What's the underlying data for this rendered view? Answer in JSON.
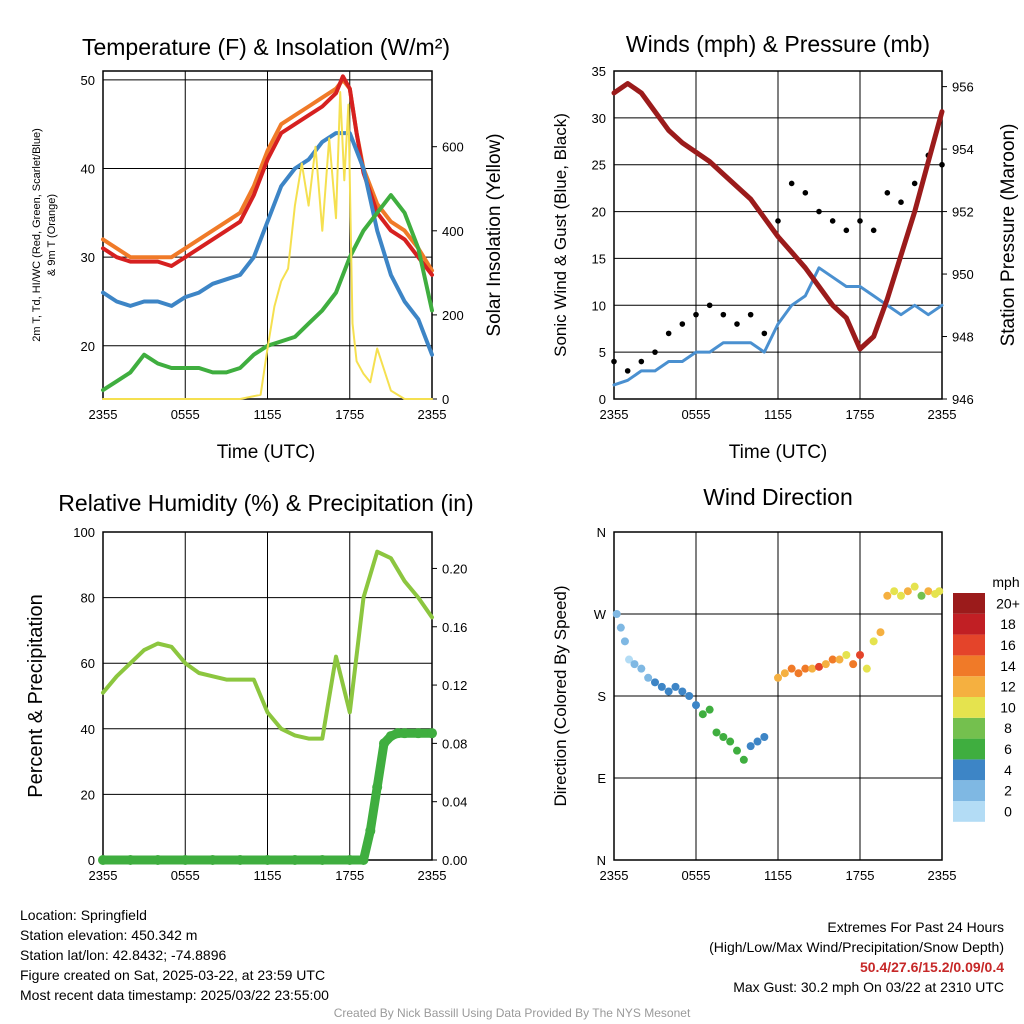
{
  "panels": {
    "temp": {
      "title": "Temperature (F) & Insolation (W/m²)",
      "ylabel_left": [
        "2m T, Td, HI/WC (Red, Green, Scarlet/Blue)",
        "& 9m T (Orange)"
      ],
      "ylabel_right": "Solar Insolation (Yellow)",
      "xlabel": "Time (UTC)"
    },
    "winds": {
      "title": "Winds (mph) & Pressure (mb)",
      "ylabel_left": "Sonic Wind & Gust (Blue, Black)",
      "ylabel_right": "Station Pressure (Maroon)",
      "xlabel": "Time (UTC)"
    },
    "rh": {
      "title": "Relative Humidity (%) & Precipitation (in)",
      "ylabel_left": "Percent & Precipitation"
    },
    "dir": {
      "title": "Wind Direction",
      "ylabel_left": "Direction (Colored By Speed)",
      "colorbar_unit": "mph"
    }
  },
  "station": {
    "location": "Location: Springfield",
    "elevation": "Station elevation: 450.342 m",
    "latlon": "Station lat/lon: 42.8432; -74.8896",
    "created": "Figure created on Sat, 2025-03-22, at 23:59 UTC",
    "recent": "Most recent data timestamp: 2025/03/22 23:55:00"
  },
  "extremes": {
    "heading": "Extremes For Past 24 Hours",
    "legend": "(High/Low/Max Wind/Precipitation/Snow Depth)",
    "values": "50.4/27.6/15.2/0.09/0.4",
    "gust": "Max Gust: 30.2 mph On 03/22 at 2310 UTC"
  },
  "credit": "Created By Nick Bassill Using Data Provided By The NYS Mesonet",
  "colors": {
    "temp": "#d62020",
    "temp9m": "#f07a28",
    "dewpoint": "#3fae3f",
    "windchill": "#3d85c6",
    "solar": "#f5e050",
    "wind": "#4a90d0",
    "gust": "#000000",
    "pressure": "#9b1b1b",
    "rh": "#8cc63f",
    "precip": "#3fae3f"
  },
  "chart_data": [
    {
      "type": "line",
      "id": "temp",
      "title": "Temperature (F) & Insolation (W/m²)",
      "xlabel": "Time (UTC)",
      "x_ticks": [
        "2355",
        "0555",
        "1155",
        "1755",
        "2355"
      ],
      "xlim": [
        0,
        24
      ],
      "ylim_left": [
        14,
        51
      ],
      "yticks_left": [
        20,
        30,
        40,
        50
      ],
      "ylim_right": [
        0,
        780
      ],
      "yticks_right": [
        0,
        200,
        400,
        600
      ],
      "series": [
        {
          "name": "2m T",
          "key": "temp9m",
          "axis": "left",
          "x": [
            0,
            1,
            2,
            3,
            4,
            5,
            6,
            7,
            8,
            9,
            10,
            11,
            12,
            13,
            14,
            15,
            16,
            17,
            17.5,
            18,
            18.5,
            19,
            20,
            21,
            22,
            23,
            24
          ],
          "values": [
            32,
            31,
            30,
            30,
            30,
            30,
            31,
            32,
            33,
            34,
            35,
            38,
            42,
            45,
            46,
            47,
            48,
            49,
            50,
            49,
            44,
            40,
            36,
            34,
            33,
            31,
            28.5
          ]
        },
        {
          "name": "2m T",
          "key": "temp",
          "axis": "left",
          "x": [
            0,
            1,
            2,
            3,
            4,
            5,
            6,
            7,
            8,
            9,
            10,
            11,
            12,
            13,
            14,
            15,
            16,
            17,
            17.5,
            18,
            18.5,
            19,
            20,
            21,
            22,
            23,
            24
          ],
          "values": [
            31,
            30,
            29.5,
            29.5,
            29.5,
            29,
            30,
            31,
            32,
            33,
            34,
            37,
            41,
            44,
            45,
            46,
            47,
            48.5,
            50.4,
            49,
            44,
            39.5,
            35,
            33,
            32,
            30,
            28
          ]
        },
        {
          "name": "HI/WC",
          "key": "windchill",
          "axis": "left",
          "x": [
            0,
            1,
            2,
            3,
            4,
            5,
            6,
            7,
            8,
            9,
            10,
            11,
            12,
            13,
            14,
            15,
            16,
            17,
            18,
            19,
            20,
            21,
            22,
            23,
            24
          ],
          "values": [
            26,
            25,
            24.5,
            25,
            25,
            24.5,
            25.5,
            26,
            27,
            27.5,
            28,
            30,
            34,
            38,
            40,
            41,
            43,
            44,
            44,
            40,
            33,
            28,
            25,
            23,
            19
          ]
        },
        {
          "name": "Td",
          "key": "dewpoint",
          "axis": "left",
          "x": [
            0,
            1,
            2,
            3,
            4,
            5,
            6,
            7,
            8,
            9,
            10,
            11,
            12,
            13,
            14,
            15,
            16,
            17,
            18,
            19,
            20,
            21,
            22,
            23,
            24
          ],
          "values": [
            15,
            16,
            17,
            19,
            18,
            17.5,
            17.5,
            17.5,
            17,
            17,
            17.5,
            19,
            20,
            20.5,
            21,
            22.5,
            24,
            26,
            30,
            33,
            35,
            37,
            35,
            31,
            24
          ]
        },
        {
          "name": "Solar Insolation",
          "key": "solar",
          "axis": "right",
          "x": [
            0,
            2,
            4,
            6,
            8,
            10,
            11.5,
            12,
            12.5,
            13,
            13.5,
            14,
            14.5,
            15,
            15.5,
            16,
            16.5,
            17,
            17.3,
            17.6,
            17.9,
            18.2,
            18.5,
            19,
            19.5,
            20,
            21,
            22,
            24
          ],
          "values": [
            0,
            0,
            0,
            0,
            0,
            0,
            10,
            120,
            220,
            280,
            310,
            460,
            560,
            460,
            600,
            400,
            620,
            430,
            730,
            520,
            700,
            180,
            90,
            60,
            40,
            120,
            20,
            0,
            0
          ]
        }
      ]
    },
    {
      "type": "line",
      "id": "winds",
      "title": "Winds (mph) & Pressure (mb)",
      "xlabel": "Time (UTC)",
      "x_ticks": [
        "2355",
        "0555",
        "1155",
        "1755",
        "2355"
      ],
      "xlim": [
        0,
        24
      ],
      "ylim_left": [
        0,
        35
      ],
      "yticks_left": [
        0,
        5,
        10,
        15,
        20,
        25,
        30,
        35
      ],
      "ylim_right": [
        946,
        956.5
      ],
      "yticks_right": [
        946,
        948,
        950,
        952,
        954,
        956
      ],
      "series": [
        {
          "name": "Sonic Wind",
          "key": "wind",
          "axis": "left",
          "x": [
            0,
            1,
            2,
            3,
            4,
            5,
            6,
            7,
            8,
            9,
            10,
            11,
            12,
            13,
            14,
            15,
            16,
            17,
            18,
            19,
            20,
            21,
            22,
            23,
            24
          ],
          "values": [
            1.5,
            2,
            3,
            3,
            4,
            4,
            5,
            5,
            6,
            6,
            6,
            5,
            8,
            10,
            11,
            14,
            13,
            12,
            12,
            11,
            10,
            9,
            10,
            9,
            10
          ]
        },
        {
          "name": "Gust",
          "key": "gust",
          "axis": "left",
          "type": "scatter",
          "x": [
            0,
            1,
            2,
            3,
            4,
            5,
            6,
            7,
            8,
            9,
            10,
            11,
            12,
            13,
            14,
            15,
            16,
            17,
            18,
            19,
            20,
            21,
            22,
            23,
            24
          ],
          "values": [
            4,
            3,
            4,
            5,
            7,
            8,
            9,
            10,
            9,
            8,
            9,
            7,
            19,
            23,
            22,
            20,
            19,
            18,
            19,
            18,
            22,
            21,
            23,
            26,
            25
          ]
        },
        {
          "name": "Station Pressure",
          "key": "pressure",
          "axis": "right",
          "x": [
            0,
            1,
            2,
            3,
            4,
            5,
            6,
            7,
            8,
            9,
            10,
            11,
            12,
            13,
            14,
            15,
            16,
            17,
            18,
            19,
            20,
            21,
            22,
            23,
            24
          ],
          "values": [
            955.8,
            956.1,
            955.8,
            955.2,
            954.6,
            954.2,
            953.9,
            953.6,
            953.2,
            952.8,
            952.4,
            951.8,
            951.2,
            950.7,
            950.2,
            949.6,
            949.0,
            948.6,
            947.6,
            948.0,
            949.2,
            950.6,
            952.0,
            953.6,
            955.2
          ]
        }
      ]
    },
    {
      "type": "line",
      "id": "rh",
      "title": "Relative Humidity (%) & Precipitation (in)",
      "x_ticks": [
        "2355",
        "0555",
        "1155",
        "1755",
        "2355"
      ],
      "xlim": [
        0,
        24
      ],
      "ylim_left": [
        0,
        100
      ],
      "yticks_left": [
        0,
        20,
        40,
        60,
        80,
        100
      ],
      "ylim_right": [
        0,
        0.225
      ],
      "yticks_right": [
        0.0,
        0.04,
        0.08,
        0.12,
        0.16,
        0.2
      ],
      "series": [
        {
          "name": "Relative Humidity",
          "key": "rh",
          "axis": "left",
          "x": [
            0,
            1,
            2,
            3,
            4,
            5,
            6,
            7,
            8,
            9,
            10,
            11,
            12,
            13,
            14,
            15,
            16,
            17,
            18,
            19,
            20,
            21,
            22,
            23,
            24
          ],
          "values": [
            51,
            56,
            60,
            64,
            66,
            65,
            60,
            57,
            56,
            55,
            55,
            55,
            45,
            40,
            38,
            37,
            37,
            62,
            45,
            80,
            94,
            92,
            85,
            80,
            74
          ]
        },
        {
          "name": "Precipitation",
          "key": "precip",
          "axis": "right",
          "type": "scatter",
          "x": [
            0,
            2,
            4,
            6,
            8,
            10,
            12,
            14,
            16,
            18,
            19,
            19.5,
            20,
            20.5,
            21,
            21.5,
            22,
            23,
            24
          ],
          "values": [
            0,
            0,
            0,
            0,
            0,
            0,
            0,
            0,
            0,
            0,
            0,
            0.02,
            0.05,
            0.08,
            0.085,
            0.087,
            0.087,
            0.087,
            0.087
          ]
        }
      ]
    },
    {
      "type": "scatter",
      "id": "dir",
      "title": "Wind Direction",
      "x_ticks": [
        "2355",
        "0555",
        "1155",
        "1755",
        "2355"
      ],
      "xlim": [
        0,
        24
      ],
      "ylim": [
        0,
        360
      ],
      "ytick_labels": [
        "N",
        "E",
        "S",
        "W",
        "N"
      ],
      "ytick_values": [
        0,
        90,
        180,
        270,
        360
      ],
      "colorbar": {
        "labels": [
          "0",
          "2",
          "4",
          "6",
          "8",
          "10",
          "12",
          "14",
          "16",
          "18",
          "20+"
        ],
        "colors": [
          "#b3dcf5",
          "#7fb8e3",
          "#3d85c6",
          "#3fae3f",
          "#74c04e",
          "#e5e34e",
          "#f5b040",
          "#f07a28",
          "#e4442a",
          "#c11f24",
          "#9b1b1b"
        ]
      },
      "series": [
        {
          "name": "Direction",
          "x": [
            0.2,
            0.5,
            0.8,
            1.1,
            1.5,
            2.0,
            2.5,
            3.0,
            3.5,
            4.0,
            4.5,
            5.0,
            5.5,
            6.0,
            6.5,
            7.0,
            7.5,
            8.0,
            8.5,
            9.0,
            9.5,
            10.0,
            10.5,
            11.0,
            12.0,
            12.5,
            13.0,
            13.5,
            14.0,
            14.5,
            15.0,
            15.5,
            16.0,
            16.5,
            17.0,
            17.5,
            18.0,
            18.5,
            19.0,
            19.5,
            20.0,
            20.5,
            21.0,
            21.5,
            22.0,
            22.5,
            23.0,
            23.5,
            23.8
          ],
          "values": [
            270,
            255,
            240,
            220,
            215,
            210,
            200,
            195,
            190,
            185,
            190,
            185,
            180,
            170,
            160,
            165,
            140,
            135,
            130,
            120,
            110,
            125,
            130,
            135,
            200,
            205,
            210,
            205,
            210,
            210,
            212,
            215,
            220,
            220,
            225,
            215,
            225,
            210,
            240,
            250,
            290,
            295,
            290,
            295,
            300,
            290,
            295,
            292,
            295
          ],
          "speeds": [
            1,
            1,
            1,
            0,
            1,
            2,
            2,
            3,
            4,
            3,
            4,
            3,
            3,
            4,
            5,
            5,
            6,
            6,
            5,
            6,
            5,
            4,
            3,
            4,
            11,
            12,
            13,
            14,
            14,
            12,
            15,
            11,
            13,
            11,
            10,
            13,
            15,
            10,
            9,
            12,
            12,
            10,
            9,
            11,
            10,
            8,
            12,
            10,
            9
          ]
        }
      ]
    }
  ]
}
